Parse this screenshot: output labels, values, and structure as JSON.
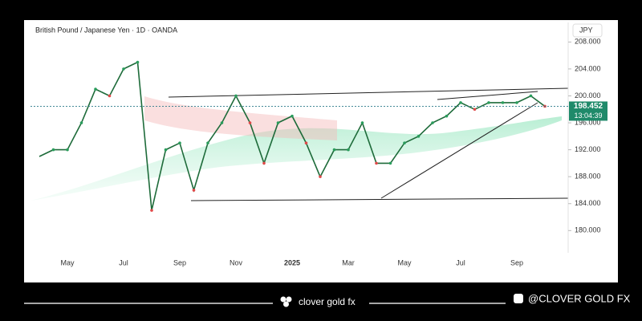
{
  "chart_data": {
    "type": "line",
    "title": "British Pound / Japanese Yen · 1D · OANDA",
    "currency": "JPY",
    "categories": [
      null,
      null,
      "May",
      null,
      null,
      null,
      "Jul",
      null,
      null,
      null,
      "Sep",
      null,
      null,
      null,
      "Nov",
      null,
      null,
      null,
      "2025",
      null,
      null,
      null,
      "Mar",
      null,
      null,
      null,
      "May",
      null,
      null,
      null,
      "Jul",
      null,
      null,
      null,
      "Sep",
      null,
      null
    ],
    "series": [
      {
        "name": "GBPJPY",
        "color": "#1e6b3a",
        "values": [
          191,
          192,
          192,
          196,
          201,
          200,
          204,
          205,
          183,
          192,
          193,
          186,
          193,
          196,
          200,
          196,
          190,
          196,
          197,
          193,
          188,
          192,
          192,
          196,
          190,
          190,
          193,
          194,
          196,
          197,
          199,
          198,
          199,
          199,
          199,
          200,
          198.452
        ]
      }
    ],
    "last_price_label": "198.452",
    "countdown": "13:04:39",
    "ylim": [
      176.7,
      210.9
    ],
    "yticks": [
      {
        "value": 180,
        "label": "180.000"
      },
      {
        "value": 184,
        "label": "184.000"
      },
      {
        "value": 188,
        "label": "188.000"
      },
      {
        "value": 192,
        "label": "192.000"
      },
      {
        "value": 196,
        "label": "196.000"
      },
      {
        "value": 200,
        "label": "200.000"
      },
      {
        "value": 204,
        "label": "204.000"
      },
      {
        "value": 208,
        "label": "208.000"
      }
    ],
    "footer": {
      "brand": "clover gold fx",
      "handle": "@CLOVER GOLD FX"
    }
  }
}
